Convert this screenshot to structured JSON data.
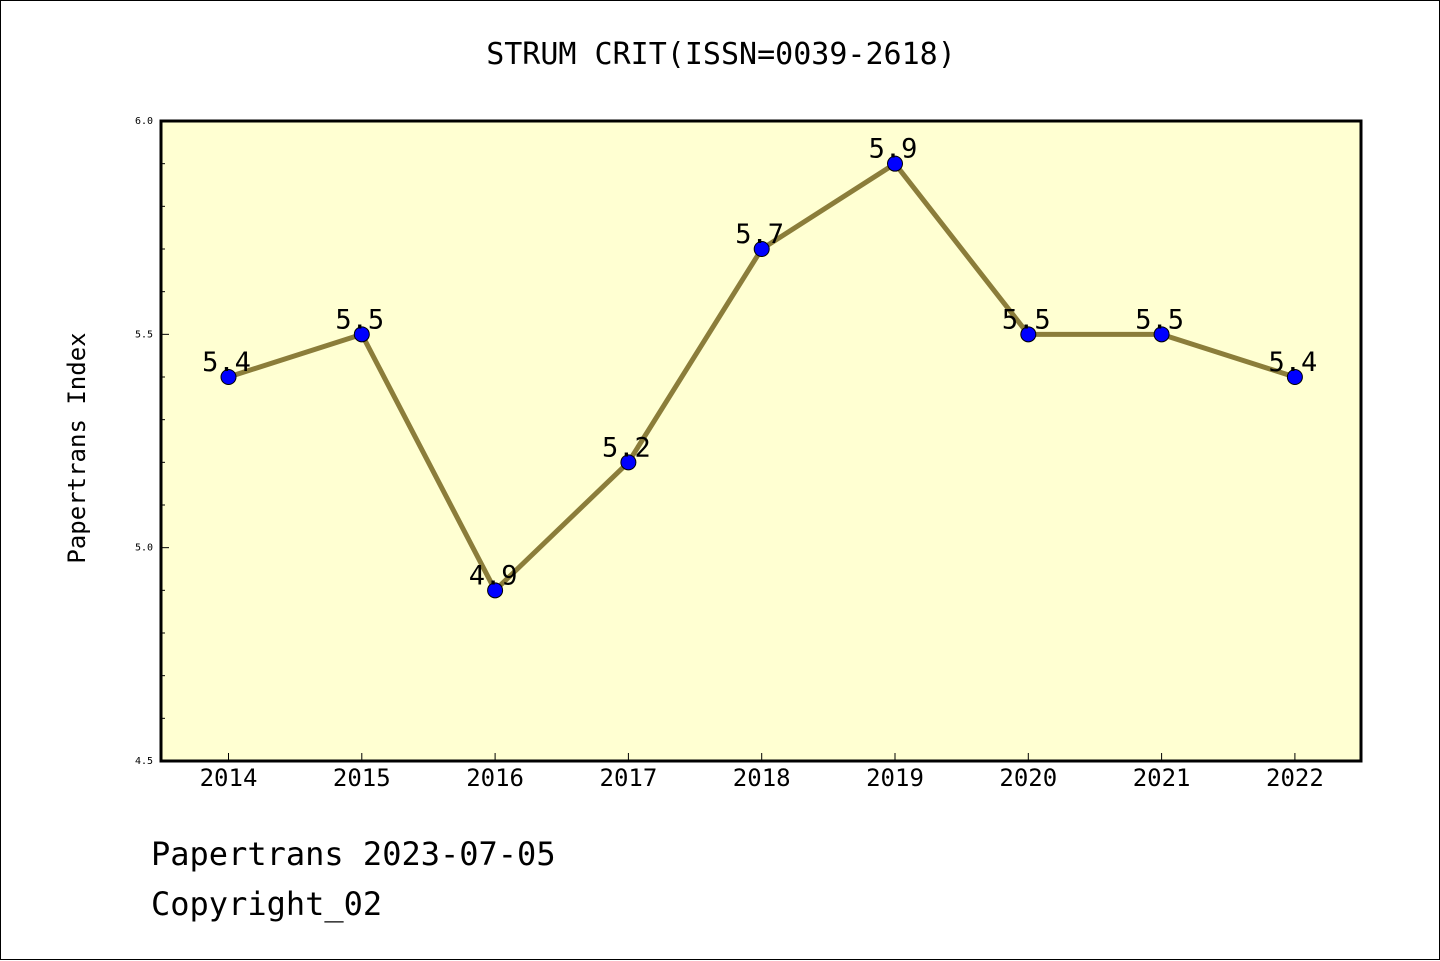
{
  "chart_data": {
    "type": "line",
    "title": "STRUM CRIT(ISSN=0039-2618)",
    "xlabel": "",
    "ylabel": "Papertrans Index",
    "categories": [
      "2014",
      "2015",
      "2016",
      "2017",
      "2018",
      "2019",
      "2020",
      "2021",
      "2022"
    ],
    "series": [
      {
        "values": [
          5.4,
          5.5,
          4.9,
          5.2,
          5.7,
          5.9,
          5.5,
          5.5,
          5.4
        ],
        "data_labels": [
          "5.4",
          "5.5",
          "4.9",
          "5.2",
          "5.7",
          "5.9",
          "5.5",
          "5.5",
          "5.4"
        ],
        "line_color": "#8b7d3a",
        "marker_color": "#0000ff"
      }
    ],
    "ylim": [
      4.5,
      6.0
    ],
    "yticks": [
      "4.5",
      "5.0",
      "5.5",
      "6.0"
    ],
    "grid": false,
    "plot_background": "#ffffd2"
  },
  "footer": {
    "date_text": "Papertrans 2023-07-05",
    "copyright_text": "Copyright_02"
  }
}
